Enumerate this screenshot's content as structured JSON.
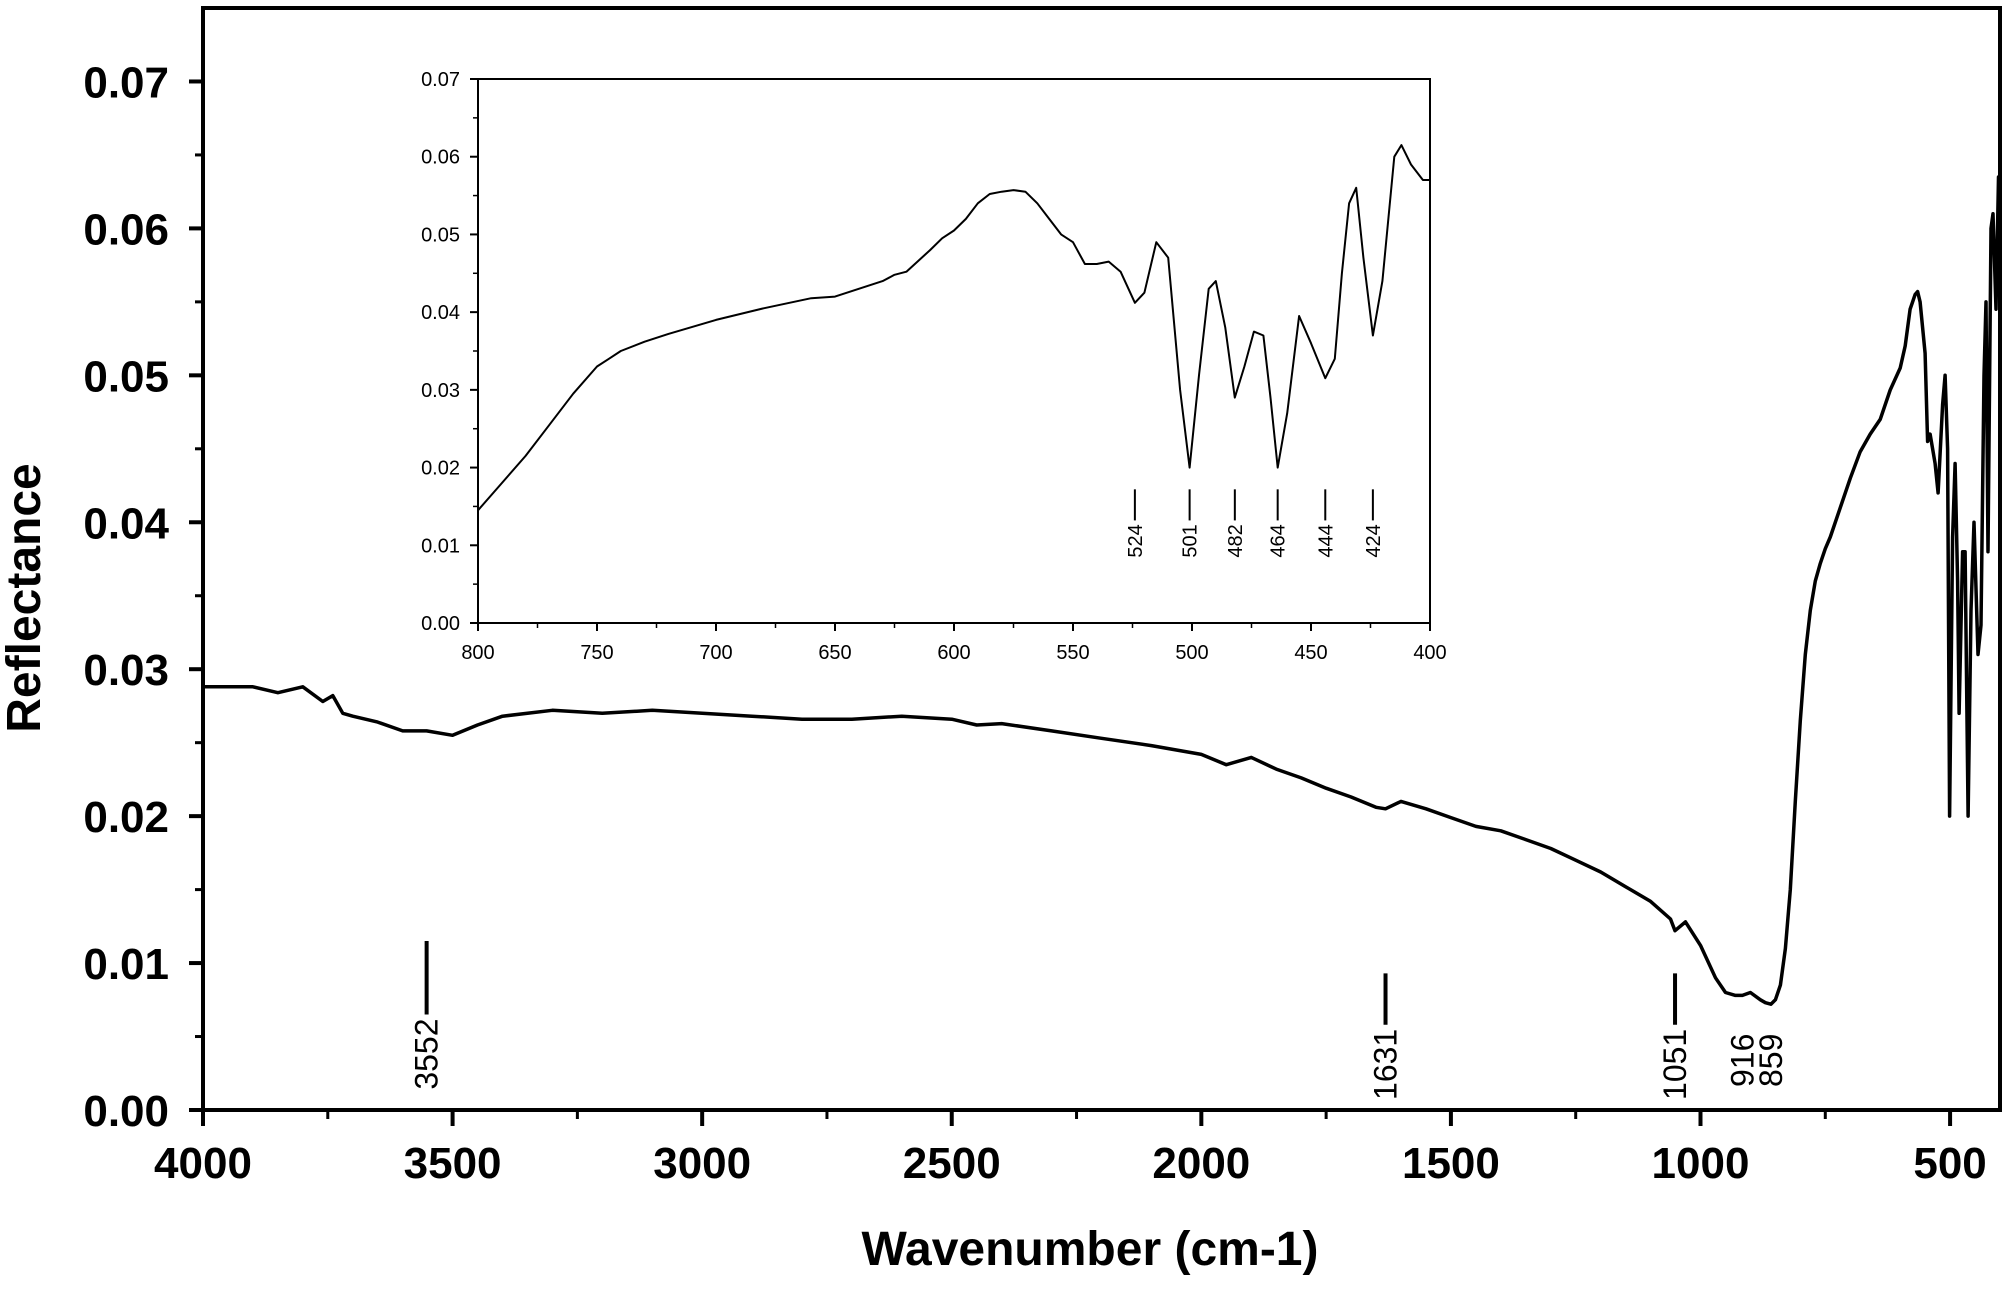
{
  "chart_data": [
    {
      "type": "line",
      "title": "",
      "xlabel": "Wavenumber (cm-1)",
      "ylabel": "Reflectance",
      "xlim": [
        4000,
        400
      ],
      "ylim": [
        0,
        0.075
      ],
      "x_ticks": [
        "4000",
        "3500",
        "3000",
        "2500",
        "2000",
        "1500",
        "1000",
        "500"
      ],
      "y_ticks": [
        "0.00",
        "0.01",
        "0.02",
        "0.03",
        "0.04",
        "0.05",
        "0.06",
        "0.07"
      ],
      "grid": false,
      "series": [
        {
          "x": [
            4000,
            3900,
            3850,
            3800,
            3760,
            3740,
            3720,
            3700,
            3650,
            3600,
            3552,
            3500,
            3450,
            3400,
            3350,
            3300,
            3250,
            3200,
            3100,
            3000,
            2900,
            2800,
            2700,
            2600,
            2500,
            2450,
            2400,
            2300,
            2200,
            2100,
            2000,
            1950,
            1900,
            1850,
            1800,
            1750,
            1700,
            1650,
            1631,
            1600,
            1550,
            1500,
            1450,
            1400,
            1350,
            1300,
            1250,
            1200,
            1150,
            1100,
            1060,
            1051,
            1030,
            1000,
            970,
            950,
            930,
            916,
            900,
            880,
            870,
            859,
            850,
            840,
            830,
            820,
            810,
            800,
            790,
            780,
            770,
            760,
            750,
            740,
            720,
            700,
            680,
            660,
            640,
            620,
            600,
            590,
            580,
            575,
            570,
            565,
            560,
            550,
            545,
            540,
            530,
            524,
            515,
            510,
            505,
            501,
            495,
            490,
            485,
            482,
            475,
            470,
            464,
            458,
            452,
            444,
            438,
            432,
            428,
            424,
            418,
            414,
            408,
            403,
            400
          ],
          "y": [
            0.0288,
            0.0288,
            0.0284,
            0.0288,
            0.0278,
            0.0282,
            0.027,
            0.0268,
            0.0264,
            0.0258,
            0.0258,
            0.0255,
            0.0262,
            0.0268,
            0.027,
            0.0272,
            0.0271,
            0.027,
            0.0272,
            0.027,
            0.0268,
            0.0266,
            0.0266,
            0.0268,
            0.0266,
            0.0262,
            0.0263,
            0.0258,
            0.0253,
            0.0248,
            0.0242,
            0.0235,
            0.024,
            0.0232,
            0.0226,
            0.0219,
            0.0213,
            0.0206,
            0.0205,
            0.021,
            0.0205,
            0.0199,
            0.0193,
            0.019,
            0.0184,
            0.0178,
            0.017,
            0.0162,
            0.0152,
            0.0142,
            0.013,
            0.0122,
            0.0128,
            0.0112,
            0.009,
            0.008,
            0.0078,
            0.0078,
            0.008,
            0.0075,
            0.0073,
            0.0072,
            0.0075,
            0.0085,
            0.011,
            0.015,
            0.021,
            0.0265,
            0.031,
            0.034,
            0.036,
            0.0372,
            0.0382,
            0.039,
            0.041,
            0.043,
            0.0448,
            0.046,
            0.047,
            0.049,
            0.0505,
            0.052,
            0.0545,
            0.055,
            0.0555,
            0.0557,
            0.055,
            0.0515,
            0.0455,
            0.046,
            0.044,
            0.042,
            0.048,
            0.05,
            0.045,
            0.02,
            0.039,
            0.044,
            0.036,
            0.027,
            0.038,
            0.038,
            0.02,
            0.034,
            0.04,
            0.031,
            0.033,
            0.05,
            0.055,
            0.038,
            0.06,
            0.061,
            0.0545,
            0.0635,
            0.057
          ]
        }
      ],
      "annotations": [
        "3552",
        "1631",
        "1051",
        "916",
        "859"
      ]
    },
    {
      "type": "line",
      "title": "",
      "xlabel": "",
      "ylabel": "",
      "xlim": [
        800,
        400
      ],
      "ylim": [
        0,
        0.07
      ],
      "x_ticks": [
        "800",
        "750",
        "700",
        "650",
        "600",
        "550",
        "500",
        "450",
        "400"
      ],
      "y_ticks": [
        "0.00",
        "0.01",
        "0.02",
        "0.03",
        "0.04",
        "0.05",
        "0.06",
        "0.07"
      ],
      "grid": false,
      "series": [
        {
          "x": [
            800,
            790,
            780,
            770,
            760,
            750,
            745,
            740,
            730,
            720,
            700,
            680,
            660,
            650,
            640,
            630,
            625,
            620,
            610,
            605,
            600,
            595,
            590,
            585,
            580,
            575,
            570,
            565,
            560,
            555,
            550,
            545,
            540,
            535,
            530,
            524,
            520,
            515,
            510,
            505,
            501,
            497,
            493,
            490,
            486,
            482,
            478,
            474,
            470,
            467,
            464,
            460,
            455,
            450,
            444,
            440,
            437,
            434,
            431,
            428,
            424,
            420,
            415,
            412,
            408,
            403,
            400
          ],
          "y": [
            0.0145,
            0.018,
            0.0215,
            0.0255,
            0.0295,
            0.033,
            0.034,
            0.035,
            0.0362,
            0.0372,
            0.039,
            0.0405,
            0.0418,
            0.042,
            0.043,
            0.044,
            0.0448,
            0.0452,
            0.048,
            0.0495,
            0.0505,
            0.052,
            0.054,
            0.0552,
            0.0555,
            0.0557,
            0.0555,
            0.054,
            0.052,
            0.05,
            0.049,
            0.0462,
            0.0462,
            0.0465,
            0.0452,
            0.0412,
            0.0425,
            0.049,
            0.047,
            0.03,
            0.02,
            0.032,
            0.043,
            0.044,
            0.038,
            0.029,
            0.033,
            0.0375,
            0.037,
            0.029,
            0.02,
            0.027,
            0.0395,
            0.036,
            0.0315,
            0.034,
            0.045,
            0.054,
            0.056,
            0.047,
            0.037,
            0.044,
            0.06,
            0.0615,
            0.059,
            0.057,
            0.057
          ]
        }
      ],
      "annotations": [
        "524",
        "501",
        "482",
        "464",
        "444",
        "424"
      ]
    }
  ]
}
